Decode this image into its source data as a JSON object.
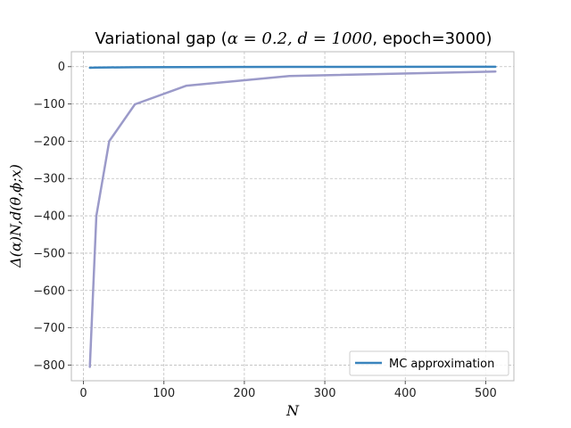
{
  "chart_data": {
    "type": "line",
    "title_prefix": "Variational gap (",
    "title_math": "α = 0.2, d = 1000",
    "title_suffix": ", epoch=3000)",
    "xlabel": "N",
    "ylabel": "Δ(α)N,d(θ,ϕ;x)",
    "xlim": [
      -15,
      535
    ],
    "ylim": [
      -842,
      40
    ],
    "xticks": [
      0,
      100,
      200,
      300,
      400,
      500
    ],
    "yticks": [
      0,
      -100,
      -200,
      -300,
      -400,
      -500,
      -600,
      -700,
      -800
    ],
    "ytick_labels": [
      "0",
      "−100",
      "−200",
      "−300",
      "−400",
      "−500",
      "−600",
      "−700",
      "−800"
    ],
    "grid": true,
    "legend_position": "bottom-right",
    "series": [
      {
        "name": "MC approximation",
        "color": "#3a84bd",
        "in_legend": true,
        "x": [
          8,
          16,
          32,
          64,
          128,
          256,
          512
        ],
        "y": [
          -3,
          -2.5,
          -2,
          -1.5,
          -1,
          -0.7,
          -0.5
        ]
      },
      {
        "color": "#9b9ac9",
        "in_legend": false,
        "x": [
          8,
          16,
          32,
          64,
          128,
          256,
          512
        ],
        "y": [
          -805,
          -400,
          -200,
          -101,
          -51,
          -25,
          -13
        ]
      }
    ]
  }
}
